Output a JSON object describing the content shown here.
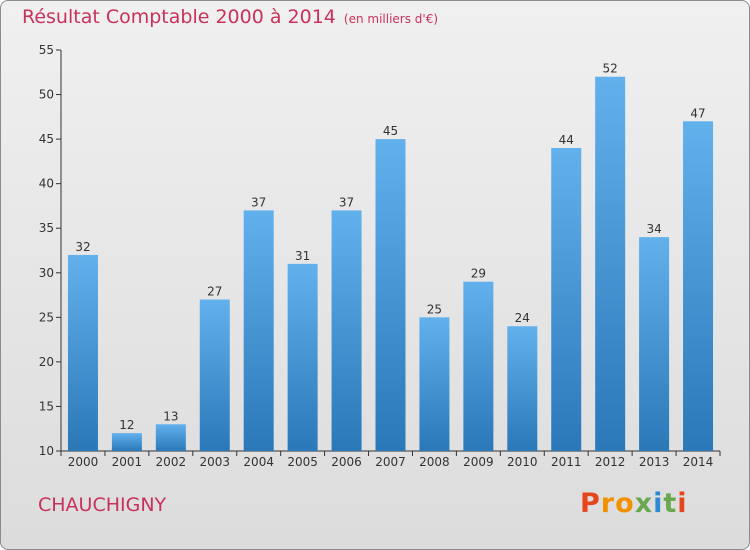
{
  "title": "Résultat Comptable 2000 à 2014",
  "unit": "(en milliers d'€)",
  "commune": "CHAUCHIGNY",
  "logo": {
    "text": "Proxiti",
    "colors": [
      "#e5461c",
      "#f29100",
      "#f29100",
      "#6aa84f",
      "#2b8ad2",
      "#6aa84f",
      "#e5461c"
    ]
  },
  "colors": {
    "bar_top": "#62b0ec",
    "bar_bottom": "#2a78b8",
    "title": "#c8325a"
  },
  "chart_data": {
    "type": "bar",
    "title": "Résultat Comptable 2000 à 2014",
    "categories": [
      "2000",
      "2001",
      "2002",
      "2003",
      "2004",
      "2005",
      "2006",
      "2007",
      "2008",
      "2009",
      "2010",
      "2011",
      "2012",
      "2013",
      "2014"
    ],
    "values": [
      32,
      12,
      13,
      27,
      37,
      31,
      37,
      45,
      25,
      29,
      24,
      44,
      52,
      34,
      47
    ],
    "ylim": [
      10,
      55
    ],
    "yticks": [
      10,
      15,
      20,
      25,
      30,
      35,
      40,
      45,
      50,
      55
    ],
    "grid": false,
    "legend": "none"
  }
}
